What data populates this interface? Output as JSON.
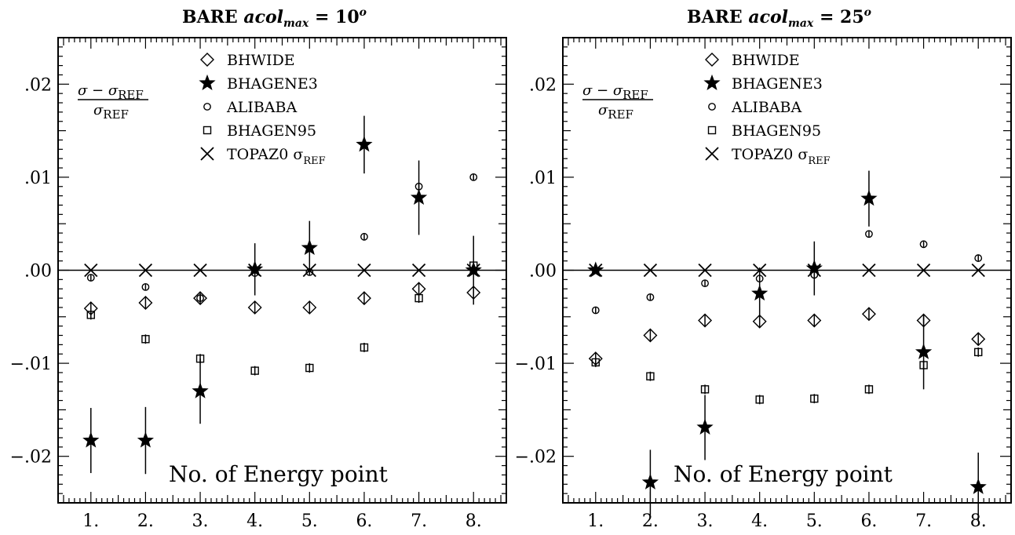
{
  "chart_data": [
    {
      "type": "scatter",
      "title": {
        "prefix": "BARE ",
        "math": "acol",
        "sub": "max",
        "eq": " = ",
        "value": "10",
        "sup": "o"
      },
      "ylabel": {
        "num": "σ − σ",
        "num_sub": "REF",
        "den": "σ",
        "den_sub": "REF"
      },
      "xlabel": "No. of Energy point",
      "ylim": [
        -0.025,
        0.025
      ],
      "xlim": [
        0.4,
        8.6
      ],
      "x": [
        1,
        2,
        3,
        4,
        5,
        6,
        7,
        8
      ],
      "x_tick_labels": [
        "1.",
        "2.",
        "3.",
        "4.",
        "5.",
        "6.",
        "7.",
        "8."
      ],
      "y_ticks": [
        -0.02,
        -0.01,
        0,
        0.01,
        0.02
      ],
      "y_tick_labels": [
        "−.02",
        "−.01",
        ".00",
        ".01",
        ".02"
      ],
      "legend": [
        {
          "marker": "diamond",
          "label": "BHWIDE"
        },
        {
          "marker": "star",
          "label": "BHAGENE3"
        },
        {
          "marker": "circle",
          "label": "ALIBABA"
        },
        {
          "marker": "square",
          "label": "BHAGEN95"
        },
        {
          "marker": "cross",
          "label": "TOPAZ0 σ",
          "label_sub": "REF"
        }
      ],
      "series": [
        {
          "name": "BHWIDE",
          "marker": "diamond",
          "values": [
            -0.0041,
            -0.0035,
            -0.003,
            -0.004,
            -0.004,
            -0.003,
            -0.002,
            -0.0024
          ],
          "errors": [
            0.0006,
            0.0006,
            0.0006,
            0.0006,
            0.0006,
            0.0006,
            0.0006,
            0.0006
          ]
        },
        {
          "name": "BHAGENE3",
          "marker": "star",
          "values": [
            -0.0183,
            -0.0183,
            -0.013,
            0.0001,
            0.0024,
            0.0135,
            0.0078,
            0.0
          ],
          "errors": [
            0.0035,
            0.0036,
            0.0035,
            0.0028,
            0.0029,
            0.0031,
            0.004,
            0.0037
          ]
        },
        {
          "name": "ALIBABA",
          "marker": "circle",
          "values": [
            -0.0008,
            -0.0018,
            -0.003,
            -0.0003,
            -0.0002,
            0.0036,
            0.009,
            0.01
          ],
          "errors": [
            0.0003,
            0.0003,
            0.0003,
            0.0003,
            0.0003,
            0.0003,
            0.0003,
            0.0003
          ]
        },
        {
          "name": "BHAGEN95",
          "marker": "square",
          "values": [
            -0.0048,
            -0.0074,
            -0.0095,
            -0.0108,
            -0.0105,
            -0.0083,
            -0.003,
            0.0005
          ],
          "errors": [
            0.0005,
            0.0005,
            0.0005,
            0.0005,
            0.0005,
            0.0005,
            0.0005,
            0.0005
          ]
        },
        {
          "name": "TOPAZ0 σREF",
          "marker": "cross",
          "values": [
            0,
            0,
            0,
            0,
            0,
            0,
            0,
            0
          ],
          "errors": [
            0,
            0,
            0,
            0,
            0,
            0,
            0,
            0
          ]
        }
      ]
    },
    {
      "type": "scatter",
      "title": {
        "prefix": "BARE ",
        "math": "acol",
        "sub": "max",
        "eq": " = ",
        "value": "25",
        "sup": "o"
      },
      "ylabel": {
        "num": "σ − σ",
        "num_sub": "REF",
        "den": "σ",
        "den_sub": "REF"
      },
      "xlabel": "No. of Energy point",
      "ylim": [
        -0.025,
        0.025
      ],
      "xlim": [
        0.4,
        8.6
      ],
      "x": [
        1,
        2,
        3,
        4,
        5,
        6,
        7,
        8
      ],
      "x_tick_labels": [
        "1.",
        "2.",
        "3.",
        "4.",
        "5.",
        "6.",
        "7.",
        "8."
      ],
      "y_ticks": [
        -0.02,
        -0.01,
        0,
        0.01,
        0.02
      ],
      "y_tick_labels": [
        "−.02",
        "−.01",
        ".00",
        ".01",
        ".02"
      ],
      "legend": [
        {
          "marker": "diamond",
          "label": "BHWIDE"
        },
        {
          "marker": "star",
          "label": "BHAGENE3"
        },
        {
          "marker": "circle",
          "label": "ALIBABA"
        },
        {
          "marker": "square",
          "label": "BHAGEN95"
        },
        {
          "marker": "cross",
          "label": "TOPAZ0 σ",
          "label_sub": "REF"
        }
      ],
      "series": [
        {
          "name": "BHWIDE",
          "marker": "diamond",
          "values": [
            -0.0095,
            -0.007,
            -0.0054,
            -0.0055,
            -0.0054,
            -0.0047,
            -0.0054,
            -0.0074
          ],
          "errors": [
            0.0006,
            0.0006,
            0.0006,
            0.0006,
            0.0006,
            0.0006,
            0.0006,
            0.0006
          ]
        },
        {
          "name": "BHAGENE3",
          "marker": "star",
          "values": [
            0,
            -0.0228,
            -0.0169,
            -0.0025,
            0.0002,
            0.0077,
            -0.0088,
            -0.0233
          ],
          "errors": [
            0,
            0.0035,
            0.0035,
            0.0028,
            0.0029,
            0.003,
            0.004,
            0.0037
          ]
        },
        {
          "name": "ALIBABA",
          "marker": "circle",
          "values": [
            -0.0043,
            -0.0029,
            -0.0014,
            -0.0009,
            -0.0005,
            0.0039,
            0.0028,
            0.0013
          ],
          "errors": [
            0.0003,
            0.0003,
            0.0003,
            0.0003,
            0.0003,
            0.0003,
            0.0003,
            0.0003
          ]
        },
        {
          "name": "BHAGEN95",
          "marker": "square",
          "values": [
            -0.0099,
            -0.0114,
            -0.0128,
            -0.0139,
            -0.0138,
            -0.0128,
            -0.0102,
            -0.0088
          ],
          "errors": [
            0.0005,
            0.0005,
            0.0005,
            0.0005,
            0.0005,
            0.0005,
            0.0005,
            0.0005
          ]
        },
        {
          "name": "TOPAZ0 σREF",
          "marker": "cross",
          "values": [
            0,
            0,
            0,
            0,
            0,
            0,
            0,
            0
          ],
          "errors": [
            0,
            0,
            0,
            0,
            0,
            0,
            0,
            0
          ]
        }
      ]
    }
  ]
}
